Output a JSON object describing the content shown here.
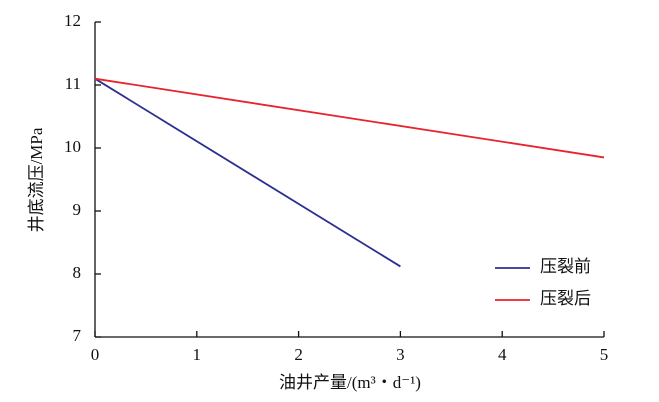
{
  "chart_data": {
    "type": "line",
    "xlabel": "油井产量/(m³・d⁻¹)",
    "ylabel": "井底流压/MPa",
    "xlim": [
      0,
      5
    ],
    "xticks": [
      0,
      1,
      2,
      3,
      4,
      5
    ],
    "ylim": [
      7,
      12
    ],
    "yticks": [
      7,
      8,
      9,
      10,
      11,
      12
    ],
    "legend": "lower right",
    "series": [
      {
        "name": "压裂前",
        "color": "#2b2f8f",
        "x": [
          0,
          3
        ],
        "values": [
          11.1,
          8.12
        ]
      },
      {
        "name": "压裂后",
        "color": "#e8232b",
        "x": [
          0,
          5
        ],
        "values": [
          11.1,
          9.85
        ]
      }
    ]
  }
}
